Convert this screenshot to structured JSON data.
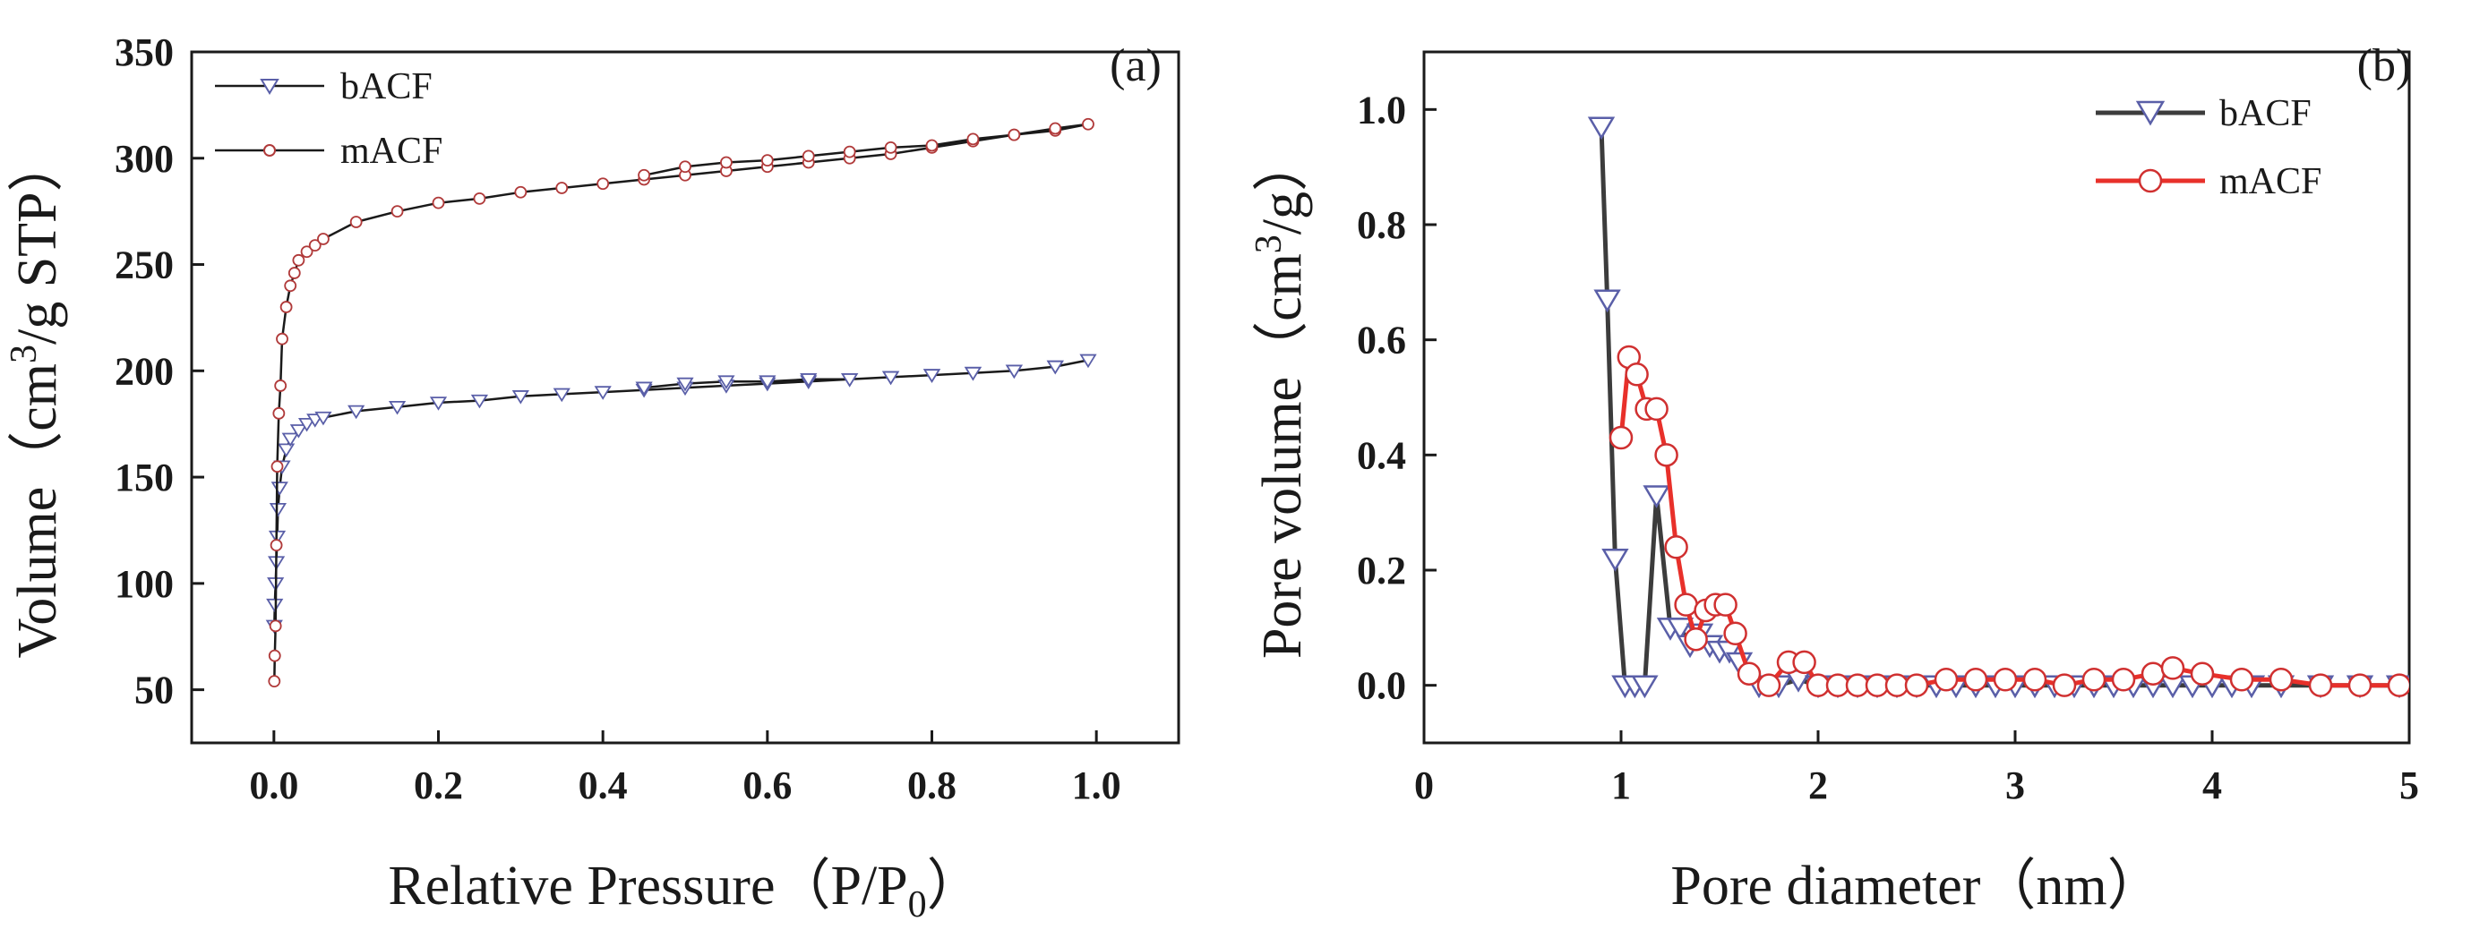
{
  "chart_data": [
    {
      "type": "line",
      "panel_label": "(a)",
      "xlabel": "Relative Pressure（P/P",
      "xlabel_sub": "0",
      "xlabel_end": "）",
      "ylabel": "Volume（cm",
      "ylabel_sup": "3",
      "ylabel_end": "/g STP）",
      "xlim": [
        -0.1,
        1.1
      ],
      "ylim": [
        25,
        350
      ],
      "xticks": [
        "0.0",
        "0.2",
        "0.4",
        "0.6",
        "0.8",
        "1.0"
      ],
      "xtick_values": [
        0.0,
        0.2,
        0.4,
        0.6,
        0.8,
        1.0
      ],
      "yticks": [
        "50",
        "100",
        "150",
        "200",
        "250",
        "300",
        "350"
      ],
      "ytick_values": [
        50,
        100,
        150,
        200,
        250,
        300,
        350
      ],
      "legend_position": "top-left",
      "series": [
        {
          "name": "bACF",
          "marker": "triangle-down",
          "line_color": "#1a1a1a",
          "marker_color": "#5a5fa8",
          "x": [
            0.0005,
            0.001,
            0.002,
            0.003,
            0.004,
            0.005,
            0.007,
            0.01,
            0.015,
            0.02,
            0.03,
            0.04,
            0.05,
            0.06,
            0.1,
            0.15,
            0.2,
            0.25,
            0.3,
            0.35,
            0.4,
            0.45,
            0.5,
            0.55,
            0.6,
            0.65,
            0.7,
            0.75,
            0.8,
            0.85,
            0.9,
            0.95,
            0.99,
            0.95,
            0.9,
            0.85,
            0.8,
            0.75,
            0.7,
            0.65,
            0.6,
            0.55,
            0.5,
            0.45
          ],
          "y": [
            80,
            90,
            100,
            110,
            122,
            135,
            145,
            155,
            163,
            168,
            172,
            175,
            177,
            178,
            181,
            183,
            185,
            186,
            188,
            189,
            190,
            191,
            192,
            193,
            194,
            195,
            196,
            197,
            198,
            199,
            200,
            202,
            205,
            202,
            200,
            199,
            198,
            197,
            196,
            196,
            195,
            195,
            194,
            192
          ]
        },
        {
          "name": "mACF",
          "marker": "circle",
          "line_color": "#1a1a1a",
          "marker_color": "#b03a3a",
          "x": [
            0.0005,
            0.001,
            0.002,
            0.003,
            0.004,
            0.006,
            0.008,
            0.01,
            0.015,
            0.02,
            0.025,
            0.03,
            0.04,
            0.05,
            0.06,
            0.1,
            0.15,
            0.2,
            0.25,
            0.3,
            0.35,
            0.4,
            0.45,
            0.5,
            0.55,
            0.6,
            0.65,
            0.7,
            0.75,
            0.8,
            0.85,
            0.9,
            0.95,
            0.99,
            0.95,
            0.9,
            0.85,
            0.8,
            0.75,
            0.7,
            0.65,
            0.6,
            0.55,
            0.5,
            0.45
          ],
          "y": [
            54,
            66,
            80,
            118,
            155,
            180,
            193,
            215,
            230,
            240,
            246,
            252,
            256,
            259,
            262,
            270,
            275,
            279,
            281,
            284,
            286,
            288,
            290,
            292,
            294,
            296,
            298,
            300,
            302,
            305,
            308,
            311,
            313,
            316,
            314,
            311,
            309,
            306,
            305,
            303,
            301,
            299,
            298,
            296,
            292
          ]
        }
      ]
    },
    {
      "type": "line",
      "panel_label": "(b)",
      "xlabel": "Pore diameter（nm）",
      "ylabel": "Pore volume（cm",
      "ylabel_sup": "3",
      "ylabel_end": "/g）",
      "xlim": [
        0,
        5
      ],
      "ylim": [
        -0.1,
        1.1
      ],
      "xticks": [
        "0",
        "1",
        "2",
        "3",
        "4",
        "5"
      ],
      "xtick_values": [
        0,
        1,
        2,
        3,
        4,
        5
      ],
      "yticks": [
        "0.0",
        "0.2",
        "0.4",
        "0.6",
        "0.8",
        "1.0"
      ],
      "ytick_values": [
        0.0,
        0.2,
        0.4,
        0.6,
        0.8,
        1.0
      ],
      "legend_position": "top-right",
      "series": [
        {
          "name": "bACF",
          "marker": "triangle-down",
          "line_color": "#3c3c3c",
          "marker_color": "#5a5fa8",
          "x": [
            0.9,
            0.93,
            0.97,
            1.02,
            1.07,
            1.12,
            1.18,
            1.25,
            1.3,
            1.35,
            1.4,
            1.45,
            1.5,
            1.55,
            1.6,
            1.7,
            1.8,
            1.9,
            2.0,
            2.1,
            2.2,
            2.3,
            2.4,
            2.5,
            2.6,
            2.7,
            2.8,
            2.9,
            3.0,
            3.1,
            3.2,
            3.3,
            3.4,
            3.5,
            3.6,
            3.7,
            3.8,
            3.9,
            4.0,
            4.1,
            4.2,
            4.35,
            4.55,
            4.75,
            4.95
          ],
          "y": [
            0.97,
            0.67,
            0.22,
            0.0,
            0.0,
            0.0,
            0.33,
            0.1,
            0.1,
            0.07,
            0.09,
            0.07,
            0.06,
            0.06,
            0.04,
            0.0,
            0.0,
            0.01,
            0.0,
            0.0,
            0.0,
            0.0,
            0.0,
            0.0,
            0.0,
            0.0,
            0.0,
            0.0,
            0.0,
            0.0,
            0.0,
            0.0,
            0.0,
            0.0,
            0.0,
            0.0,
            0.0,
            0.0,
            0.0,
            0.0,
            0.0,
            0.0,
            0.0,
            0.0,
            0.0
          ]
        },
        {
          "name": "mACF",
          "marker": "circle",
          "line_color": "#e8302a",
          "marker_color": "#d03030",
          "x": [
            1.0,
            1.04,
            1.08,
            1.13,
            1.18,
            1.23,
            1.28,
            1.33,
            1.38,
            1.43,
            1.48,
            1.53,
            1.58,
            1.65,
            1.75,
            1.85,
            1.93,
            2.0,
            2.1,
            2.2,
            2.3,
            2.4,
            2.5,
            2.65,
            2.8,
            2.95,
            3.1,
            3.25,
            3.4,
            3.55,
            3.7,
            3.8,
            3.95,
            4.15,
            4.35,
            4.55,
            4.75,
            4.95
          ],
          "y": [
            0.43,
            0.57,
            0.54,
            0.48,
            0.48,
            0.4,
            0.24,
            0.14,
            0.08,
            0.13,
            0.14,
            0.14,
            0.09,
            0.02,
            0.0,
            0.04,
            0.04,
            0.0,
            0.0,
            0.0,
            0.0,
            0.0,
            0.0,
            0.01,
            0.01,
            0.01,
            0.01,
            0.0,
            0.01,
            0.01,
            0.02,
            0.03,
            0.02,
            0.01,
            0.01,
            0.0,
            0.0,
            0.0
          ]
        }
      ]
    }
  ]
}
